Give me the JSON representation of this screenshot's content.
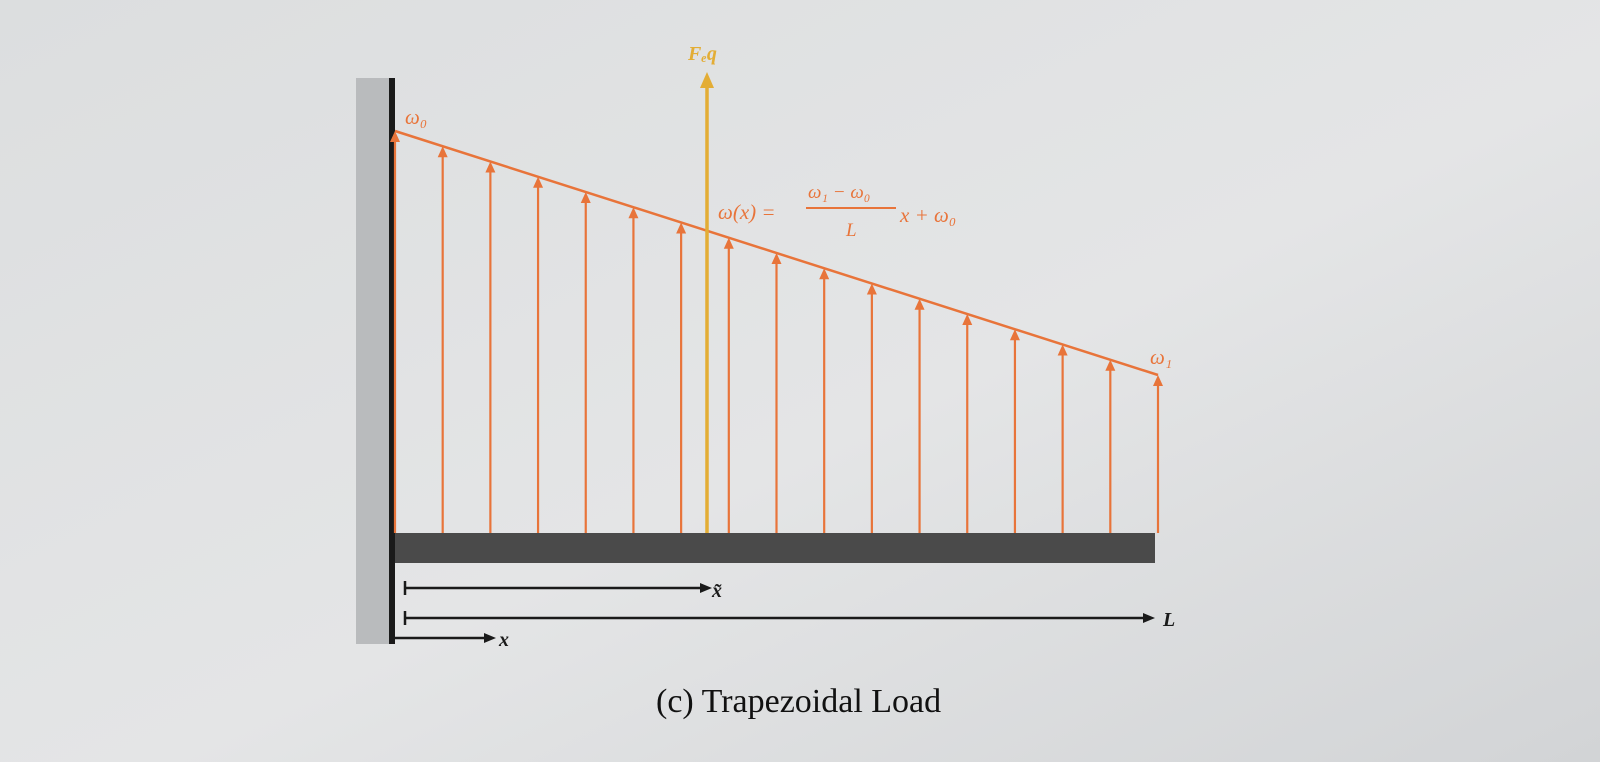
{
  "labels": {
    "w0": "ω₀",
    "w1": "ω₁",
    "feq": "Fₑq",
    "formula_lhs": "ω(x) =",
    "formula_num": "ω₁ − ω₀",
    "formula_den": "L",
    "formula_tail": "x + ω₀",
    "x_bar": "x̃",
    "length": "L",
    "x": "x"
  },
  "caption": "(c) Trapezoidal Load",
  "colors": {
    "load": "#e8743a",
    "resultant": "#e3ad35",
    "beam": "#4a4a4a",
    "wall": "#b9bbbd",
    "wall_edge": "#1a1a1a",
    "dimension": "#1a1a1a"
  },
  "load": {
    "arrow_count": 17
  }
}
